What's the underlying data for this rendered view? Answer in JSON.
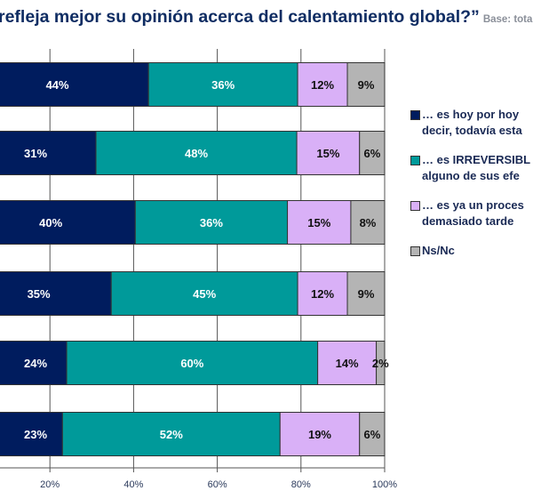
{
  "title": "refleja mejor su opinión acerca del calentamiento global?”",
  "base_label": "Base: total",
  "chart_data": {
    "type": "bar",
    "orientation": "horizontal",
    "stacked": true,
    "xlim": [
      0,
      100
    ],
    "x_ticks": [
      "20%",
      "40%",
      "60%",
      "80%",
      "100%"
    ],
    "grid": true,
    "legend_position": "right",
    "series": [
      {
        "name": "… es hoy por hoy | decir, todavía est",
        "color": "#001c5e",
        "values": [
          44,
          31,
          40,
          35,
          24,
          23
        ]
      },
      {
        "name": "… es IRREVERSIBL | alguno de sus efe",
        "color": "#009a9a",
        "values": [
          36,
          48,
          36,
          45,
          60,
          52
        ]
      },
      {
        "name": "… es ya un proces | demasiado tarde",
        "color": "#d9b0f7",
        "values": [
          12,
          15,
          15,
          12,
          14,
          19
        ]
      },
      {
        "name": "Ns/Nc",
        "color": "#b4b4b4",
        "values": [
          9,
          6,
          8,
          9,
          2,
          6
        ]
      }
    ],
    "label_colors": [
      "#ffffff",
      "#ffffff",
      "#111111",
      "#111111"
    ]
  },
  "legend": [
    {
      "line1": "… es hoy por hoy",
      "line2": "decir, todavía esta"
    },
    {
      "line1": "… es IRREVERSIBL",
      "line2": "alguno de sus efe"
    },
    {
      "line1": "… es ya un proces",
      "line2": "demasiado tarde"
    },
    {
      "line1": "Ns/Nc",
      "line2": ""
    }
  ]
}
